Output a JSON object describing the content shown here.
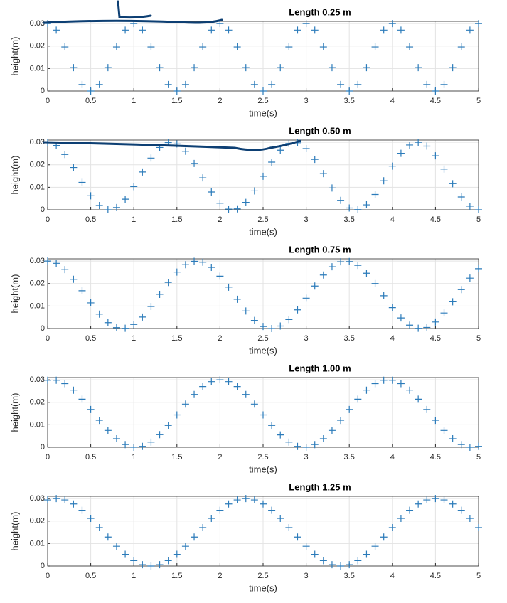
{
  "chart_data": [
    {
      "type": "scatter",
      "title": "Length 0.25 m",
      "xlabel": "time(s)",
      "ylabel": "height(m)",
      "color": "#2b7bba",
      "grid": true,
      "xlim": [
        0,
        5
      ],
      "ylim": [
        0,
        0.031
      ],
      "xticks": [
        0,
        0.5,
        1,
        1.5,
        2,
        2.5,
        3,
        3.5,
        4,
        4.5,
        5
      ],
      "yticks": [
        0,
        0.01,
        0.02,
        0.03
      ],
      "x": [
        0,
        0.1,
        0.2,
        0.3,
        0.4,
        0.5,
        0.6,
        0.7,
        0.8,
        0.9,
        1,
        1.1,
        1.2,
        1.3,
        1.4,
        1.5,
        1.6,
        1.7,
        1.8,
        1.9,
        2,
        2.1,
        2.2,
        2.3,
        2.4,
        2.5,
        2.6,
        2.7,
        2.8,
        2.9,
        3,
        3.1,
        3.2,
        3.3,
        3.4,
        3.5,
        3.6,
        3.7,
        3.8,
        3.9,
        4,
        4.1,
        4.2,
        4.3,
        4.4,
        4.5,
        4.6,
        4.7,
        4.8,
        4.9,
        5
      ],
      "values": [
        0.03,
        0.0271,
        0.0196,
        0.0104,
        0.0029,
        0,
        0.0029,
        0.0104,
        0.0196,
        0.0271,
        0.03,
        0.0271,
        0.0196,
        0.0104,
        0.0029,
        0,
        0.0029,
        0.0104,
        0.0196,
        0.0271,
        0.03,
        0.0271,
        0.0196,
        0.0104,
        0.0029,
        0,
        0.0029,
        0.0104,
        0.0196,
        0.0271,
        0.03,
        0.0271,
        0.0196,
        0.0104,
        0.0029,
        0,
        0.0029,
        0.0104,
        0.0196,
        0.0271,
        0.03,
        0.0271,
        0.0196,
        0.0104,
        0.0029,
        0,
        0.0029,
        0.0104,
        0.0196,
        0.0271,
        0.03
      ]
    },
    {
      "type": "scatter",
      "title": "Length 0.50 m",
      "xlabel": "time(s)",
      "ylabel": "height(m)",
      "color": "#2b7bba",
      "grid": true,
      "xlim": [
        0,
        5
      ],
      "ylim": [
        0,
        0.031
      ],
      "xticks": [
        0,
        0.5,
        1,
        1.5,
        2,
        2.5,
        3,
        3.5,
        4,
        4.5,
        5
      ],
      "yticks": [
        0,
        0.01,
        0.02,
        0.03
      ],
      "x": [
        0,
        0.1,
        0.2,
        0.3,
        0.4,
        0.5,
        0.6,
        0.7,
        0.8,
        0.9,
        1,
        1.1,
        1.2,
        1.3,
        1.4,
        1.5,
        1.6,
        1.7,
        1.8,
        1.9,
        2,
        2.1,
        2.2,
        2.3,
        2.4,
        2.5,
        2.6,
        2.7,
        2.8,
        2.9,
        3,
        3.1,
        3.2,
        3.3,
        3.4,
        3.5,
        3.6,
        3.7,
        3.8,
        3.9,
        4,
        4.1,
        4.2,
        4.3,
        4.4,
        4.5,
        4.6,
        4.7,
        4.8,
        4.9,
        5
      ],
      "values": [
        0.03,
        0.0286,
        0.0246,
        0.0188,
        0.0122,
        0.0062,
        0.0019,
        0,
        0.001,
        0.0047,
        0.0103,
        0.0168,
        0.023,
        0.0277,
        0.0299,
        0.0293,
        0.026,
        0.0206,
        0.0142,
        0.0079,
        0.0029,
        0.0003,
        0.0004,
        0.0033,
        0.0084,
        0.0149,
        0.0212,
        0.0265,
        0.0295,
        0.0298,
        0.0272,
        0.0224,
        0.0161,
        0.0097,
        0.0042,
        0.0008,
        0.0001,
        0.0022,
        0.0068,
        0.0129,
        0.0194,
        0.0251,
        0.0288,
        0.03,
        0.0283,
        0.024,
        0.0181,
        0.0116,
        0.0057,
        0.0016,
        0
      ]
    },
    {
      "type": "scatter",
      "title": "Length 0.75 m",
      "xlabel": "time(s)",
      "ylabel": "height(m)",
      "color": "#2b7bba",
      "grid": true,
      "xlim": [
        0,
        5
      ],
      "ylim": [
        0,
        0.031
      ],
      "xticks": [
        0,
        0.5,
        1,
        1.5,
        2,
        2.5,
        3,
        3.5,
        4,
        4.5,
        5
      ],
      "yticks": [
        0,
        0.01,
        0.02,
        0.03
      ],
      "x": [
        0,
        0.1,
        0.2,
        0.3,
        0.4,
        0.5,
        0.6,
        0.7,
        0.8,
        0.9,
        1,
        1.1,
        1.2,
        1.3,
        1.4,
        1.5,
        1.6,
        1.7,
        1.8,
        1.9,
        2,
        2.1,
        2.2,
        2.3,
        2.4,
        2.5,
        2.6,
        2.7,
        2.8,
        2.9,
        3,
        3.1,
        3.2,
        3.3,
        3.4,
        3.5,
        3.6,
        3.7,
        3.8,
        3.9,
        4,
        4.1,
        4.2,
        4.3,
        4.4,
        4.5,
        4.6,
        4.7,
        4.8,
        4.9,
        5
      ],
      "values": [
        0.03,
        0.029,
        0.0262,
        0.0219,
        0.0168,
        0.0114,
        0.0064,
        0.0026,
        0.0004,
        0.0001,
        0.0018,
        0.0051,
        0.0098,
        0.0152,
        0.0205,
        0.0251,
        0.0284,
        0.0299,
        0.0295,
        0.0272,
        0.0233,
        0.0184,
        0.013,
        0.0078,
        0.0036,
        0.0009,
        0,
        0.0011,
        0.004,
        0.0083,
        0.0135,
        0.0189,
        0.0238,
        0.0275,
        0.0297,
        0.0298,
        0.0281,
        0.0246,
        0.02,
        0.0146,
        0.0093,
        0.0047,
        0.0015,
        0.0001,
        0.0005,
        0.0029,
        0.0069,
        0.0119,
        0.0173,
        0.0224,
        0.0266
      ]
    },
    {
      "type": "scatter",
      "title": "Length 1.00 m",
      "xlabel": "time(s)",
      "ylabel": "height(m)",
      "color": "#2b7bba",
      "grid": true,
      "xlim": [
        0,
        5
      ],
      "ylim": [
        0,
        0.031
      ],
      "xticks": [
        0,
        0.5,
        1,
        1.5,
        2,
        2.5,
        3,
        3.5,
        4,
        4.5,
        5
      ],
      "yticks": [
        0,
        0.01,
        0.02,
        0.03
      ],
      "x": [
        0,
        0.1,
        0.2,
        0.3,
        0.4,
        0.5,
        0.6,
        0.7,
        0.8,
        0.9,
        1,
        1.1,
        1.2,
        1.3,
        1.4,
        1.5,
        1.6,
        1.7,
        1.8,
        1.9,
        2,
        2.1,
        2.2,
        2.3,
        2.4,
        2.5,
        2.6,
        2.7,
        2.8,
        2.9,
        3,
        3.1,
        3.2,
        3.3,
        3.4,
        3.5,
        3.6,
        3.7,
        3.8,
        3.9,
        4,
        4.1,
        4.2,
        4.3,
        4.4,
        4.5,
        4.6,
        4.7,
        4.8,
        4.9,
        5
      ],
      "values": [
        0.0298,
        0.0298,
        0.0283,
        0.0254,
        0.0214,
        0.0168,
        0.012,
        0.0075,
        0.0038,
        0.0012,
        0,
        0.0004,
        0.0023,
        0.0056,
        0.0097,
        0.0144,
        0.0192,
        0.0235,
        0.027,
        0.0292,
        0.03,
        0.0292,
        0.027,
        0.0235,
        0.0192,
        0.0144,
        0.0097,
        0.0055,
        0.0023,
        0.0004,
        0,
        0.0012,
        0.0038,
        0.0075,
        0.012,
        0.0168,
        0.0214,
        0.0254,
        0.0283,
        0.0298,
        0.0298,
        0.0283,
        0.0254,
        0.0214,
        0.0168,
        0.012,
        0.0075,
        0.0038,
        0.0012,
        0,
        0.0004
      ]
    },
    {
      "type": "scatter",
      "title": "Length 1.25 m",
      "xlabel": "time(s)",
      "ylabel": "height(m)",
      "color": "#2b7bba",
      "grid": true,
      "xlim": [
        0,
        5
      ],
      "ylim": [
        0,
        0.031
      ],
      "xticks": [
        0,
        0.5,
        1,
        1.5,
        2,
        2.5,
        3,
        3.5,
        4,
        4.5,
        5
      ],
      "yticks": [
        0,
        0.01,
        0.02,
        0.03
      ],
      "x": [
        0,
        0.1,
        0.2,
        0.3,
        0.4,
        0.5,
        0.6,
        0.7,
        0.8,
        0.9,
        1,
        1.1,
        1.2,
        1.3,
        1.4,
        1.5,
        1.6,
        1.7,
        1.8,
        1.9,
        2,
        2.1,
        2.2,
        2.3,
        2.4,
        2.5,
        2.6,
        2.7,
        2.8,
        2.9,
        3,
        3.1,
        3.2,
        3.3,
        3.4,
        3.5,
        3.6,
        3.7,
        3.8,
        3.9,
        4,
        4.1,
        4.2,
        4.3,
        4.4,
        4.5,
        4.6,
        4.7,
        4.8,
        4.9,
        5
      ],
      "values": [
        0.0294,
        0.03,
        0.0294,
        0.0276,
        0.0248,
        0.0212,
        0.0171,
        0.0129,
        0.0088,
        0.0052,
        0.0024,
        0.0006,
        0,
        0.0006,
        0.0024,
        0.0052,
        0.0088,
        0.0129,
        0.0171,
        0.0212,
        0.0248,
        0.0276,
        0.0294,
        0.03,
        0.0294,
        0.0276,
        0.0248,
        0.0212,
        0.0171,
        0.0129,
        0.0088,
        0.0052,
        0.0024,
        0.0006,
        0,
        0.0006,
        0.0024,
        0.0052,
        0.0088,
        0.0129,
        0.0171,
        0.0212,
        0.0248,
        0.0276,
        0.0294,
        0.03,
        0.0294,
        0.0276,
        0.0248,
        0.0212,
        0.0171
      ]
    }
  ]
}
